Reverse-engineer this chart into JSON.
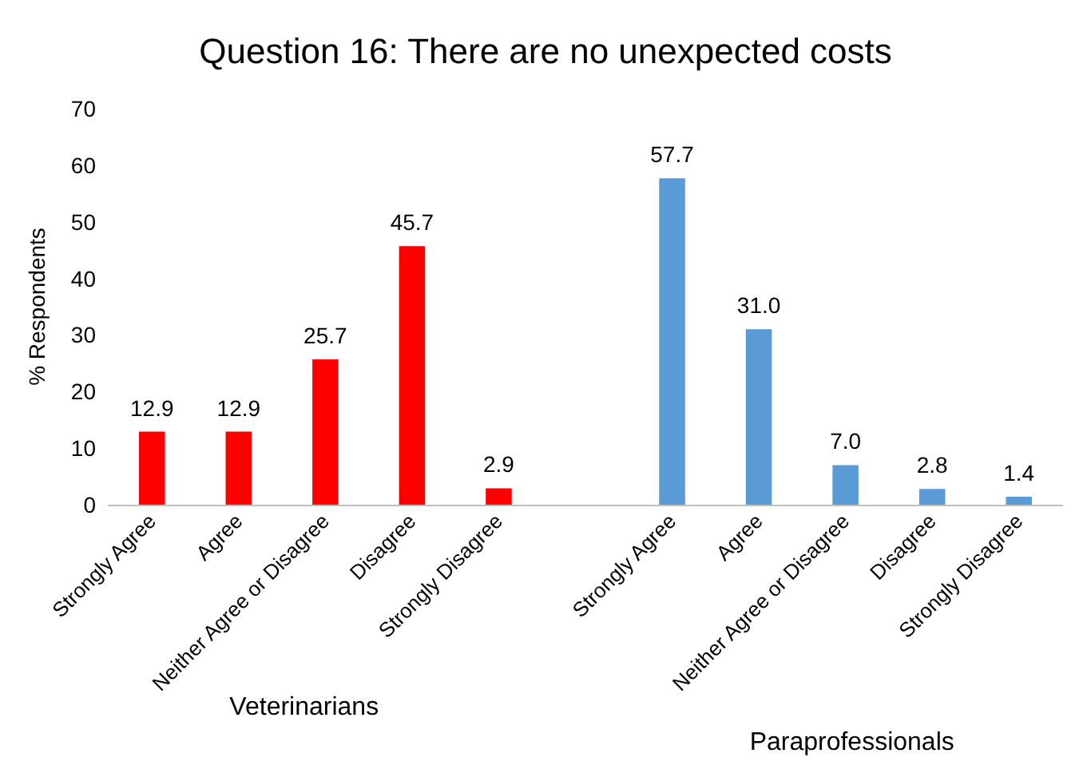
{
  "chart_data": {
    "type": "bar",
    "title": "Question 16: There are no unexpected costs",
    "ylabel": "% Respondents",
    "categories": [
      "Strongly Agree",
      "Agree",
      "Neither Agree or Disagree",
      "Disagree",
      "Strongly Disagree",
      null,
      "Strongly Agree",
      "Agree",
      "Neither Agree or Disagree",
      "Disagree",
      "Strongly Disagree"
    ],
    "values": [
      12.9,
      12.9,
      25.7,
      45.7,
      2.9,
      null,
      57.7,
      31.0,
      7.0,
      2.8,
      1.4
    ],
    "colors": [
      "#ff0000",
      "#ff0000",
      "#ff0000",
      "#ff0000",
      "#ff0000",
      null,
      "#5b9bd5",
      "#5b9bd5",
      "#5b9bd5",
      "#5b9bd5",
      "#5b9bd5"
    ],
    "value_labels": [
      "12.9",
      "12.9",
      "25.7",
      "45.7",
      "2.9",
      null,
      "57.7",
      "31.0",
      "7.0",
      "2.8",
      "1.4"
    ],
    "annotations": [
      "Veterinarians",
      "Paraprofessionals"
    ],
    "ylim": [
      0,
      70
    ],
    "yticks": [
      0,
      10,
      20,
      30,
      40,
      50,
      60,
      70
    ],
    "grid": false
  }
}
